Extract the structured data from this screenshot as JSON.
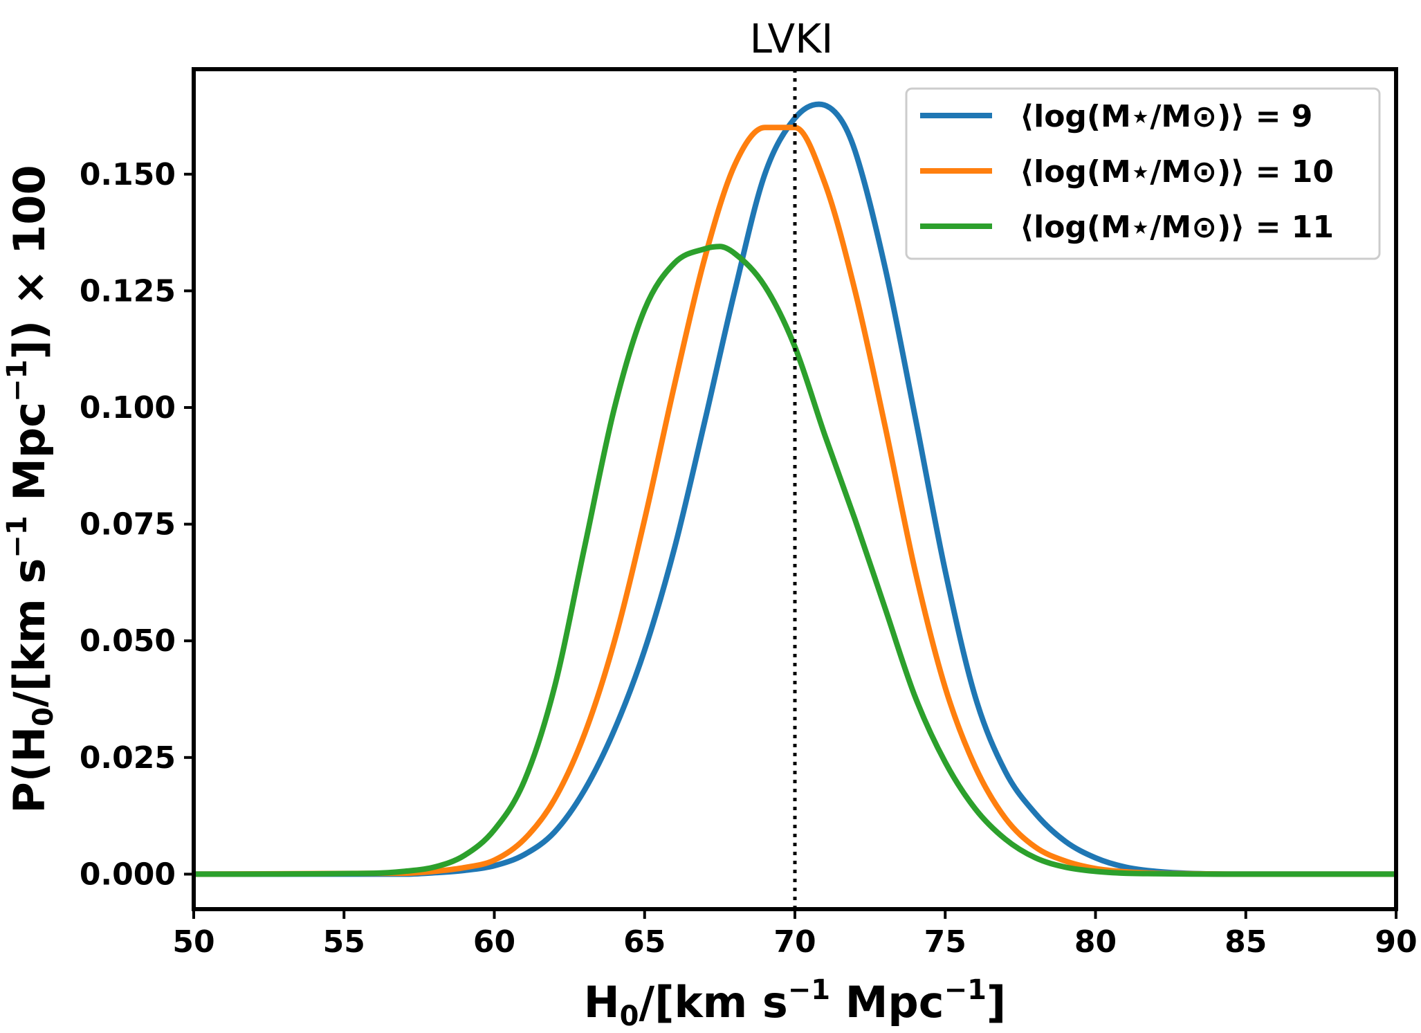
{
  "chart_data": {
    "type": "line",
    "title": "LVKI",
    "xlabel": {
      "main": "H",
      "sub": "0",
      "rest": "/[km s",
      "sup1": "−1",
      "rest2": " Mpc",
      "sup2": "−1",
      "end": "]"
    },
    "ylabel": {
      "a": "P(H",
      "sub": "0",
      "b": "/[km s",
      "sup1": "−1",
      "c": " Mpc",
      "sup2": "−1",
      "d": "]) × 100"
    },
    "xlim": [
      50,
      90
    ],
    "ylim": [
      -0.0075,
      0.1725
    ],
    "xticks": [
      50,
      55,
      60,
      65,
      70,
      75,
      80,
      85,
      90
    ],
    "xtick_labels": [
      "50",
      "55",
      "60",
      "65",
      "70",
      "75",
      "80",
      "85",
      "90"
    ],
    "yticks": [
      0.0,
      0.025,
      0.05,
      0.075,
      0.1,
      0.125,
      0.15
    ],
    "ytick_labels": [
      "0.000",
      "0.025",
      "0.050",
      "0.075",
      "0.100",
      "0.125",
      "0.150"
    ],
    "reference_line": {
      "x": 70,
      "style": "dotted",
      "color": "#000000"
    },
    "legend_position": "upper right",
    "grid": false,
    "series": [
      {
        "name": "⟨log(M⋆/M⊙)⟩ = 9",
        "color": "#1f77b4",
        "x": [
          50,
          57,
          58,
          59,
          60,
          61,
          62,
          63,
          64,
          65,
          66,
          67,
          68,
          69,
          70,
          70.8,
          71.5,
          72,
          73,
          74,
          75,
          76,
          77,
          78,
          79,
          80,
          81,
          82,
          83,
          85,
          90
        ],
        "y": [
          0.0,
          0.0,
          0.0003,
          0.0008,
          0.0018,
          0.0042,
          0.009,
          0.018,
          0.031,
          0.048,
          0.07,
          0.097,
          0.125,
          0.15,
          0.162,
          0.165,
          0.162,
          0.155,
          0.13,
          0.098,
          0.065,
          0.038,
          0.022,
          0.013,
          0.007,
          0.0035,
          0.0015,
          0.0006,
          0.0002,
          0.0,
          0.0
        ]
      },
      {
        "name": "⟨log(M⋆/M⊙)⟩ = 10",
        "color": "#ff7f0e",
        "x": [
          50,
          57,
          58,
          59,
          60,
          61,
          62,
          63,
          64,
          65,
          66,
          67,
          68,
          69,
          70,
          71,
          72,
          73,
          74,
          75,
          76,
          77,
          78,
          79,
          80,
          81,
          82,
          83,
          85,
          90
        ],
        "y": [
          0.0,
          0.0002,
          0.0006,
          0.0014,
          0.003,
          0.0075,
          0.016,
          0.03,
          0.05,
          0.076,
          0.105,
          0.132,
          0.152,
          0.16,
          0.16,
          0.148,
          0.125,
          0.096,
          0.065,
          0.04,
          0.023,
          0.012,
          0.0058,
          0.0028,
          0.0012,
          0.0005,
          0.0002,
          0.0001,
          0.0,
          0.0
        ]
      },
      {
        "name": "⟨log(M⋆/M⊙)⟩ = 11",
        "color": "#2ca02c",
        "x": [
          50,
          56,
          57,
          58,
          59,
          60,
          61,
          62,
          63,
          64,
          65,
          66,
          67,
          67.5,
          68,
          69,
          70,
          71,
          72,
          73,
          74,
          75,
          76,
          77,
          78,
          79,
          80,
          81,
          82,
          84,
          90
        ],
        "y": [
          0.0,
          0.0002,
          0.0006,
          0.0015,
          0.004,
          0.0095,
          0.02,
          0.04,
          0.07,
          0.1,
          0.121,
          0.131,
          0.134,
          0.1345,
          0.133,
          0.126,
          0.113,
          0.094,
          0.076,
          0.057,
          0.038,
          0.024,
          0.014,
          0.0075,
          0.0035,
          0.0015,
          0.0006,
          0.0002,
          0.0001,
          0.0,
          0.0
        ]
      }
    ]
  }
}
